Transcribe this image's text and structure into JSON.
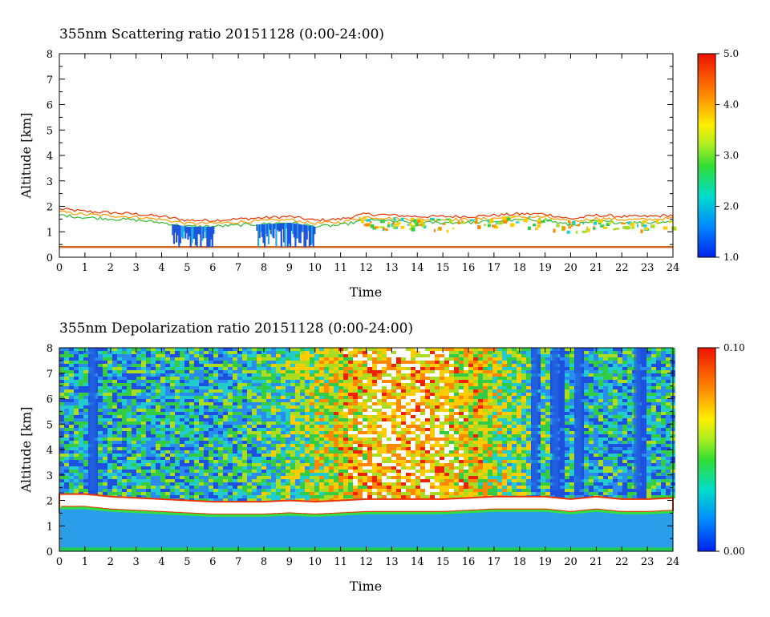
{
  "chart_data": [
    {
      "type": "heatmap",
      "title": "355nm Scattering ratio  20151128 (0:00-24:00)",
      "xlabel": "Time",
      "ylabel": "Altitude [km]",
      "xlim": [
        0,
        24
      ],
      "ylim": [
        0,
        8
      ],
      "x_ticks": [
        "0",
        "1",
        "2",
        "3",
        "4",
        "5",
        "6",
        "7",
        "8",
        "9",
        "10",
        "11",
        "12",
        "13",
        "14",
        "15",
        "16",
        "17",
        "18",
        "19",
        "20",
        "21",
        "22",
        "23",
        "24"
      ],
      "y_ticks": [
        "0",
        "1",
        "2",
        "3",
        "4",
        "5",
        "6",
        "7",
        "8"
      ],
      "colorbar": {
        "range": [
          1.0,
          5.0
        ],
        "tick_labels": [
          "5.0",
          "4.0",
          "3.0",
          "2.0",
          "1.0"
        ]
      },
      "colors": {
        "low": "#0033dd",
        "mid": "#22cc22",
        "high": "#ff2200"
      },
      "features": {
        "cloud_top_km": [
          [
            0,
            1.9
          ],
          [
            1,
            1.8
          ],
          [
            2,
            1.75
          ],
          [
            3,
            1.7
          ],
          [
            4,
            1.6
          ],
          [
            5,
            1.45
          ],
          [
            6,
            1.45
          ],
          [
            7,
            1.5
          ],
          [
            8,
            1.55
          ],
          [
            9,
            1.6
          ],
          [
            10,
            1.45
          ],
          [
            11,
            1.5
          ],
          [
            12,
            1.7
          ],
          [
            13,
            1.65
          ],
          [
            14,
            1.6
          ],
          [
            15,
            1.6
          ],
          [
            16,
            1.6
          ],
          [
            17,
            1.65
          ],
          [
            18,
            1.7
          ],
          [
            19,
            1.7
          ],
          [
            20,
            1.5
          ],
          [
            21,
            1.65
          ],
          [
            22,
            1.6
          ],
          [
            23,
            1.6
          ],
          [
            24,
            1.65
          ]
        ],
        "low_level_line_km": 0.4
      }
    },
    {
      "type": "heatmap",
      "title": "355nm Depolarization ratio  20151128 (0:00-24:00)",
      "xlabel": "Time",
      "ylabel": "Altitude [km]",
      "xlim": [
        0,
        24
      ],
      "ylim": [
        0,
        8
      ],
      "x_ticks": [
        "0",
        "1",
        "2",
        "3",
        "4",
        "5",
        "6",
        "7",
        "8",
        "9",
        "10",
        "11",
        "12",
        "13",
        "14",
        "15",
        "16",
        "17",
        "18",
        "19",
        "20",
        "21",
        "22",
        "23",
        "24"
      ],
      "y_ticks": [
        "0",
        "1",
        "2",
        "3",
        "4",
        "5",
        "6",
        "7",
        "8"
      ],
      "colorbar": {
        "range": [
          0.0,
          0.1
        ],
        "tick_labels": [
          "0.10",
          "0.00"
        ]
      },
      "colors": {
        "low": "#0033dd",
        "mid": "#22cc22",
        "high": "#ff2200"
      },
      "features": {
        "boundary_layer_top_km": [
          [
            0,
            2.0
          ],
          [
            1,
            2.0
          ],
          [
            2,
            1.9
          ],
          [
            3,
            1.85
          ],
          [
            4,
            1.8
          ],
          [
            5,
            1.75
          ],
          [
            6,
            1.7
          ],
          [
            7,
            1.7
          ],
          [
            8,
            1.7
          ],
          [
            9,
            1.75
          ],
          [
            10,
            1.7
          ],
          [
            11,
            1.75
          ],
          [
            12,
            1.8
          ],
          [
            13,
            1.8
          ],
          [
            14,
            1.8
          ],
          [
            15,
            1.8
          ],
          [
            16,
            1.85
          ],
          [
            17,
            1.9
          ],
          [
            18,
            1.9
          ],
          [
            19,
            1.9
          ],
          [
            20,
            1.8
          ],
          [
            21,
            1.9
          ],
          [
            22,
            1.8
          ],
          [
            23,
            1.8
          ],
          [
            24,
            1.85
          ]
        ],
        "low_depol_columns_hours": [
          1.3,
          18.6,
          19.4,
          20.3,
          22.6
        ]
      }
    }
  ]
}
